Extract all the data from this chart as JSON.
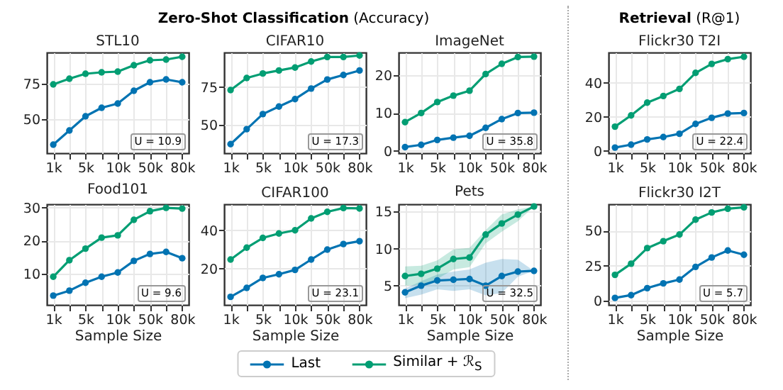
{
  "chart_data": [
    {
      "type": "other",
      "title": "Zero-Shot Classification",
      "subtitle": "(Accuracy)"
    },
    {
      "type": "other",
      "title": "Retrieval",
      "subtitle": "(R@1)"
    },
    {
      "type": "line",
      "title": "STL10",
      "categories": [
        "1k",
        null,
        "5k",
        null,
        "10k",
        null,
        "50k",
        null,
        "80k"
      ],
      "ylim": [
        26,
        97
      ],
      "yticks": [
        50,
        75
      ],
      "grid": true,
      "marker": "circle",
      "legend": "bottom",
      "annotations": [
        "U = 10.9"
      ],
      "series": [
        {
          "name": "Last",
          "color": "#0173b2",
          "values": [
            32,
            42,
            52,
            58,
            61,
            70,
            76,
            78,
            76
          ]
        },
        {
          "name": "Similar + ℛ$_{S}$",
          "color": "#029e73",
          "values": [
            74.5,
            78.5,
            82,
            83,
            83.5,
            88,
            91.5,
            92,
            94
          ]
        }
      ]
    },
    {
      "type": "line",
      "title": "CIFAR10",
      "categories": [
        "1k",
        null,
        "5k",
        null,
        "10k",
        null,
        "50k",
        null,
        "80k"
      ],
      "ylim": [
        31,
        98
      ],
      "yticks": [
        50,
        75
      ],
      "grid": true,
      "marker": "circle",
      "annotations": [
        "U = 17.3"
      ],
      "series": [
        {
          "color": "#0173b2",
          "values": [
            37,
            47,
            57,
            62,
            67,
            74,
            80,
            83,
            86
          ]
        },
        {
          "color": "#029e73",
          "values": [
            73,
            81,
            84,
            86,
            88,
            92,
            95,
            95,
            96
          ]
        }
      ]
    },
    {
      "type": "line",
      "title": "ImageNet",
      "categories": [
        "1k",
        null,
        "5k",
        null,
        "10k",
        null,
        "50k",
        null,
        "80k"
      ],
      "ylim": [
        -0.6,
        26
      ],
      "yticks": [
        0,
        10,
        20
      ],
      "grid": true,
      "marker": "circle",
      "annotations": [
        "U = 35.8"
      ],
      "series": [
        {
          "color": "#0173b2",
          "values": [
            1,
            1.6,
            2.9,
            3.5,
            4,
            6.1,
            8.4,
            10,
            10.1
          ]
        },
        {
          "color": "#029e73",
          "values": [
            7.6,
            10,
            12.9,
            14.6,
            15.9,
            20.3,
            23,
            24.8,
            24.9
          ]
        }
      ]
    },
    {
      "type": "line",
      "title": "Flickr30 T2I",
      "categories": [
        "1k",
        null,
        "5k",
        null,
        "10k",
        null,
        "50k",
        null,
        "80k"
      ],
      "ylim": [
        -1.4,
        57.8
      ],
      "yticks": [
        0,
        20,
        40
      ],
      "grid": true,
      "marker": "circle",
      "annotations": [
        "U = 22.4"
      ],
      "series": [
        {
          "color": "#0173b2",
          "values": [
            1.9,
            3.6,
            6.7,
            8.1,
            10,
            15.8,
            19.4,
            21.9,
            22.2
          ]
        },
        {
          "color": "#029e73",
          "values": [
            14.2,
            20.8,
            28.3,
            32.2,
            36.4,
            45.8,
            51.1,
            53.9,
            55.3
          ]
        }
      ]
    },
    {
      "type": "line",
      "title": "Food101",
      "xlabel": "Sample Size",
      "categories": [
        "1k",
        null,
        "5k",
        null,
        "10k",
        null,
        "50k",
        null,
        "80k"
      ],
      "ylim": [
        0.6,
        31
      ],
      "yticks": [
        10,
        20,
        30
      ],
      "grid": true,
      "marker": "circle",
      "annotations": [
        "U = 9.6"
      ],
      "series": [
        {
          "color": "#0173b2",
          "values": [
            3.4,
            4.9,
            7.3,
            9.1,
            10.4,
            13.9,
            16,
            16.6,
            14.7
          ]
        },
        {
          "color": "#029e73",
          "values": [
            9.1,
            14.1,
            17.6,
            20.9,
            21.6,
            26.3,
            28.9,
            29.9,
            29.7
          ]
        }
      ]
    },
    {
      "type": "line",
      "title": "CIFAR100",
      "xlabel": "Sample Size",
      "categories": [
        "1k",
        null,
        "5k",
        null,
        "10k",
        null,
        "50k",
        null,
        "80k"
      ],
      "ylim": [
        1,
        53.6
      ],
      "yticks": [
        20,
        40
      ],
      "grid": true,
      "marker": "circle",
      "annotations": [
        "U = 23.1"
      ],
      "series": [
        {
          "color": "#0173b2",
          "values": [
            5.2,
            9.9,
            15.1,
            17,
            19.3,
            24.7,
            29.9,
            32.8,
            34.3
          ]
        },
        {
          "color": "#029e73",
          "values": [
            24.7,
            30.9,
            36,
            38.3,
            40,
            46.2,
            49.6,
            51.6,
            51.4
          ]
        }
      ]
    },
    {
      "type": "line",
      "title": "Pets",
      "xlabel": "Sample Size",
      "categories": [
        "1k",
        null,
        "5k",
        null,
        "10k",
        null,
        "50k",
        null,
        "80k"
      ],
      "ylim": [
        2.4,
        16
      ],
      "yticks": [
        5,
        10,
        15
      ],
      "grid": true,
      "marker": "circle",
      "annotations": [
        "U = 32.5"
      ],
      "series": [
        {
          "color": "#0173b2",
          "values": [
            4.1,
            5,
            5.7,
            5.8,
            5.9,
            5,
            6.3,
            6.9,
            7
          ],
          "lower": [
            3.3,
            3.8,
            4.5,
            4.3,
            4.5,
            3.7,
            4,
            6.2,
            7
          ],
          "upper": [
            4.6,
            5.6,
            6.5,
            6.9,
            7.2,
            8.1,
            8.6,
            8.5,
            7
          ]
        },
        {
          "color": "#029e73",
          "values": [
            6.3,
            6.6,
            7.3,
            8.6,
            8.8,
            11.9,
            13.4,
            14.6,
            15.7
          ],
          "lower": [
            5,
            5.1,
            5.9,
            7.2,
            7.5,
            10.7,
            12.3,
            13.7,
            15.7
          ],
          "upper": [
            7.6,
            7.7,
            8.4,
            9.9,
            10.1,
            12.5,
            14.6,
            15.3,
            15.7
          ]
        }
      ]
    },
    {
      "type": "line",
      "title": "Flickr30 I2T",
      "xlabel": "Sample Size",
      "categories": [
        "1k",
        null,
        "5k",
        null,
        "10k",
        null,
        "50k",
        null,
        "80k"
      ],
      "ylim": [
        -3,
        69
      ],
      "yticks": [
        0,
        25,
        50
      ],
      "grid": true,
      "marker": "circle",
      "annotations": [
        "U = 5.7"
      ],
      "series": [
        {
          "color": "#0173b2",
          "values": [
            2,
            4,
            9,
            12.4,
            15.1,
            24.2,
            30.9,
            35.9,
            32.9
          ]
        },
        {
          "color": "#029e73",
          "values": [
            18.5,
            26.5,
            37.6,
            42.6,
            47.3,
            58,
            63.1,
            65.8,
            66.8
          ]
        }
      ]
    }
  ]
}
